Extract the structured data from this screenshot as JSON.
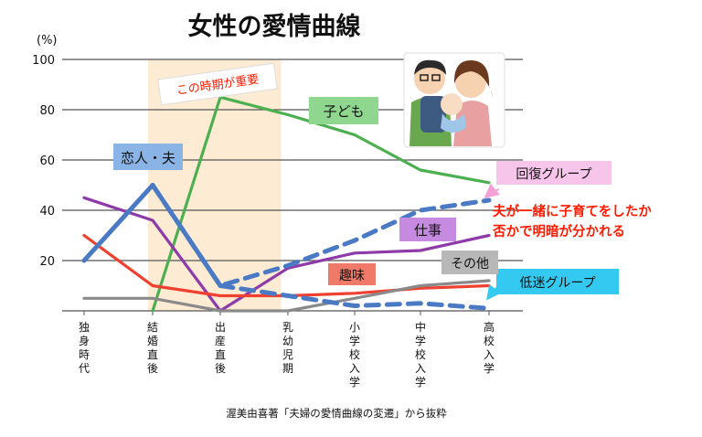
{
  "chart_data": {
    "type": "line",
    "title": "女性の愛情曲線",
    "ylabel": "(%)",
    "xlabel": "",
    "ylim": [
      0,
      100
    ],
    "yticks": [
      20,
      40,
      60,
      80,
      100
    ],
    "grid": "horizontal",
    "categories": [
      "独身時代",
      "結婚直後",
      "出産直後",
      "乳幼児期",
      "小学校入学",
      "中学校入学",
      "高校入学"
    ],
    "highlight": {
      "from": "結婚直後",
      "to": "出産直後",
      "label": "この時期が重要",
      "color": "#fdebd3"
    },
    "series": [
      {
        "name": "恋人・夫",
        "color": "#4a7ac4",
        "style": "solid",
        "label_color": "#8ab4e6",
        "values": [
          20,
          50,
          10,
          null,
          null,
          null,
          null
        ]
      },
      {
        "name": "回復グループ",
        "color": "#4a7ac4",
        "style": "dashed",
        "label_color": "#f7c4ea",
        "values": [
          null,
          50,
          10,
          18,
          28,
          40,
          44
        ]
      },
      {
        "name": "低迷グループ",
        "color": "#4a7ac4",
        "style": "dashed",
        "label_color": "#33c9f0",
        "values": [
          null,
          null,
          10,
          6,
          2,
          3,
          1
        ]
      },
      {
        "name": "子ども",
        "color": "#4caf50",
        "style": "solid",
        "label_color": "#8fd68f",
        "values": [
          null,
          0,
          85,
          78,
          70,
          56,
          51
        ]
      },
      {
        "name": "仕事",
        "color": "#8e3aa8",
        "style": "solid",
        "label_color": "#c68ae0",
        "values": [
          45,
          36,
          0,
          17,
          23,
          24,
          30
        ]
      },
      {
        "name": "趣味",
        "color": "#f04030",
        "style": "solid",
        "label_color": "#ef7a6a",
        "values": [
          30,
          10,
          6,
          6,
          7,
          9,
          10
        ]
      },
      {
        "name": "その他",
        "color": "#8a8a8a",
        "style": "solid",
        "label_color": "#b8b8b8",
        "values": [
          5,
          5,
          0,
          0,
          5,
          10,
          12
        ]
      }
    ],
    "annotation": {
      "text_line1": "夫が一緒に子育てをしたか",
      "text_line2": "否かで明暗が分かれる",
      "color": "#ff1a00"
    },
    "source": "渥美由喜著「夫婦の愛情曲線の変遷」から抜粋",
    "illustration": "parents-with-baby-illustration"
  }
}
